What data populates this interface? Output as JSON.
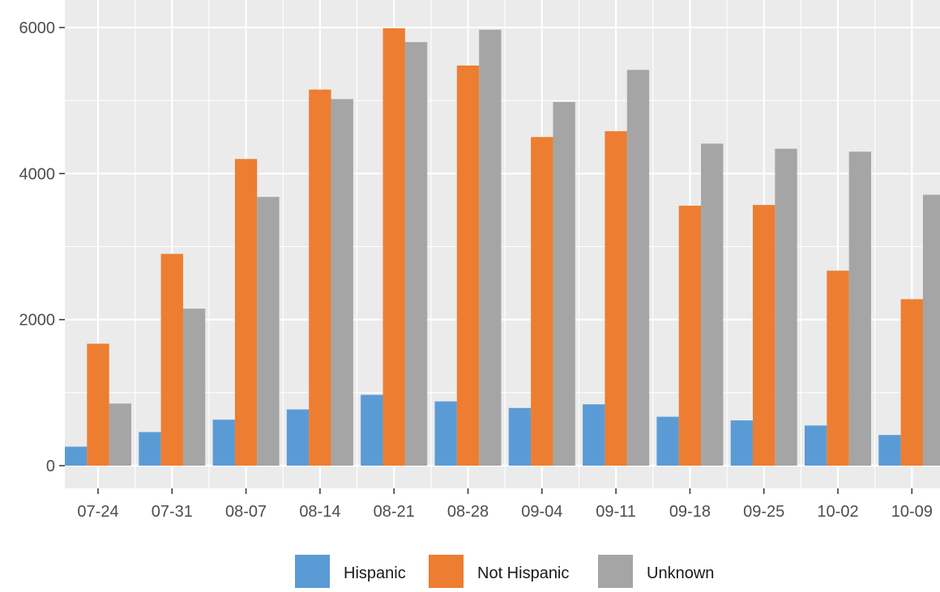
{
  "chart_data": {
    "type": "bar",
    "categories": [
      "07-24",
      "07-31",
      "08-07",
      "08-14",
      "08-21",
      "08-28",
      "09-04",
      "09-11",
      "09-18",
      "09-25",
      "10-02",
      "10-09"
    ],
    "series": [
      {
        "name": "Hispanic",
        "color": "#5b9bd5",
        "values": [
          260,
          460,
          630,
          770,
          970,
          880,
          790,
          840,
          670,
          620,
          550,
          420
        ]
      },
      {
        "name": "Not Hispanic",
        "color": "#ed7d31",
        "values": [
          1670,
          2900,
          4200,
          5150,
          5990,
          5480,
          4500,
          4580,
          3560,
          3570,
          2670,
          2280
        ]
      },
      {
        "name": "Unknown",
        "color": "#a5a5a5",
        "values": [
          850,
          2150,
          3680,
          5020,
          5800,
          5970,
          4980,
          5420,
          4410,
          4340,
          4300,
          3710
        ]
      }
    ],
    "yticks": [
      0,
      2000,
      4000,
      6000
    ],
    "ylim": [
      -320,
      6300
    ],
    "title": "",
    "xlabel": "",
    "ylabel": "",
    "legend_position": "bottom",
    "grid": true,
    "panel_background": "#ebebeb",
    "grid_color": "#ffffff"
  }
}
